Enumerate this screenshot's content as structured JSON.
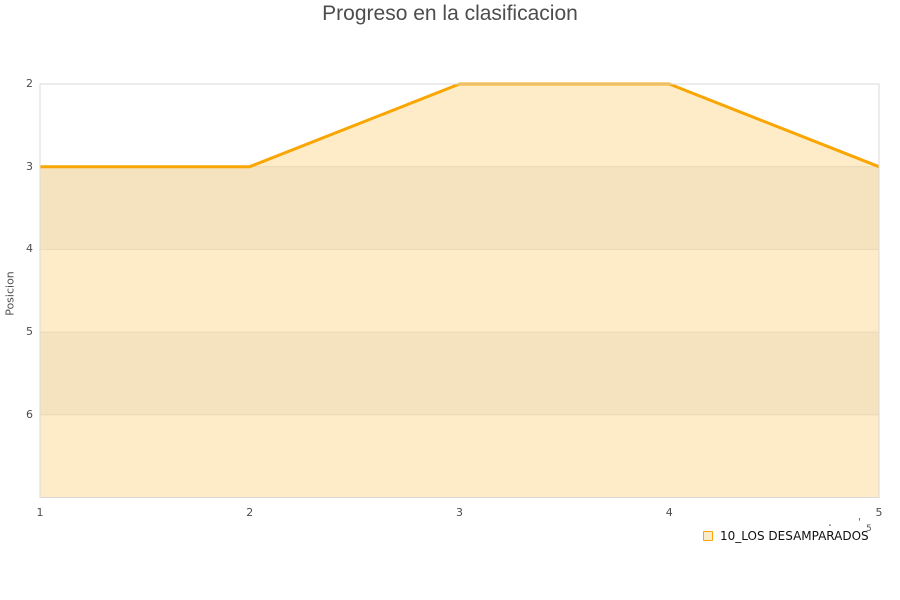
{
  "chart_data": {
    "type": "area",
    "title": "Progreso en la clasificacion",
    "xlabel": "",
    "ylabel": "Posicion",
    "x": [
      1,
      2,
      3,
      4,
      5
    ],
    "x_tick_labels": [
      "1",
      "2",
      "3",
      "4",
      "5"
    ],
    "y_tick_labels": [
      "2",
      "3",
      "4",
      "5",
      "6"
    ],
    "x_axis": {
      "min": 1,
      "max": 5
    },
    "y_axis": {
      "min": 2,
      "max": 7,
      "inverted": true,
      "gridlines": [
        2,
        3,
        4,
        5,
        6
      ]
    },
    "series": [
      {
        "name": "10_LOS DESAMPARADOS",
        "values": [
          3,
          3,
          2,
          2,
          3
        ],
        "color": "#F9A602"
      }
    ],
    "legend_position": "bottom-right",
    "grid": true,
    "colors": {
      "line": "#F9A602",
      "area_fill": "rgba(249,166,2,0.21)",
      "band": "#F4F4F4",
      "gridline": "#E6E6E6",
      "border": "#D9D9D9",
      "tick_label": "#4D4D4D",
      "title": "#4D4D4D",
      "legend_text": "#111111",
      "legend_swatch_fill": "#FBEACB",
      "legend_swatch_border": "#F9A602"
    }
  },
  "stray_marks": {
    "dot": ".",
    "tick": "'",
    "mini_label": "5"
  }
}
